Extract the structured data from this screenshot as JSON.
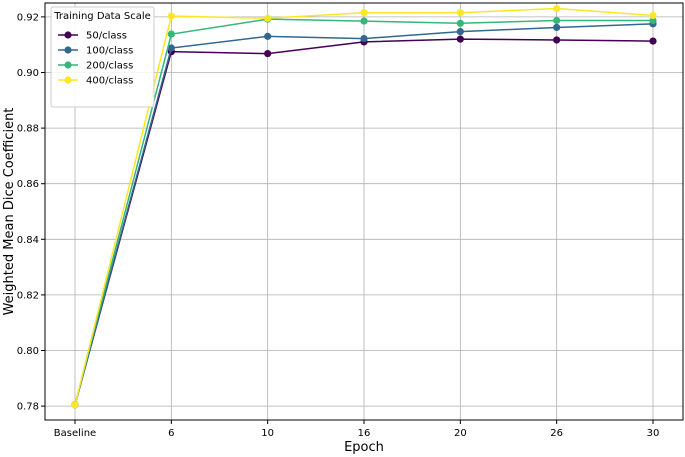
{
  "chart_data": {
    "type": "line",
    "xlabel": "Epoch",
    "ylabel": "Weighted Mean Dice Coefficient",
    "categories": [
      "Baseline",
      "6",
      "10",
      "16",
      "20",
      "26",
      "30"
    ],
    "ylim": [
      0.775,
      0.925
    ],
    "yticks": [
      0.78,
      0.8,
      0.82,
      0.84,
      0.86,
      0.88,
      0.9,
      0.92
    ],
    "ytick_labels": [
      "0.78",
      "0.80",
      "0.82",
      "0.84",
      "0.86",
      "0.88",
      "0.90",
      "0.92"
    ],
    "grid": true,
    "legend": {
      "title": "Training Data Scale",
      "placement": "top-left"
    },
    "series": [
      {
        "name": "50/class",
        "color": "#440154",
        "values": [
          0.7805,
          0.9075,
          0.9068,
          0.911,
          0.912,
          0.9117,
          0.9113
        ]
      },
      {
        "name": "100/class",
        "color": "#31688e",
        "values": [
          0.7805,
          0.9088,
          0.913,
          0.9122,
          0.9147,
          0.9162,
          0.9175
        ]
      },
      {
        "name": "200/class",
        "color": "#35b779",
        "values": [
          0.7805,
          0.9138,
          0.9192,
          0.9185,
          0.9177,
          0.9187,
          0.9187
        ]
      },
      {
        "name": "400/class",
        "color": "#fde725",
        "values": [
          0.7805,
          0.9203,
          0.9195,
          0.9215,
          0.9215,
          0.923,
          0.9205
        ]
      }
    ]
  }
}
